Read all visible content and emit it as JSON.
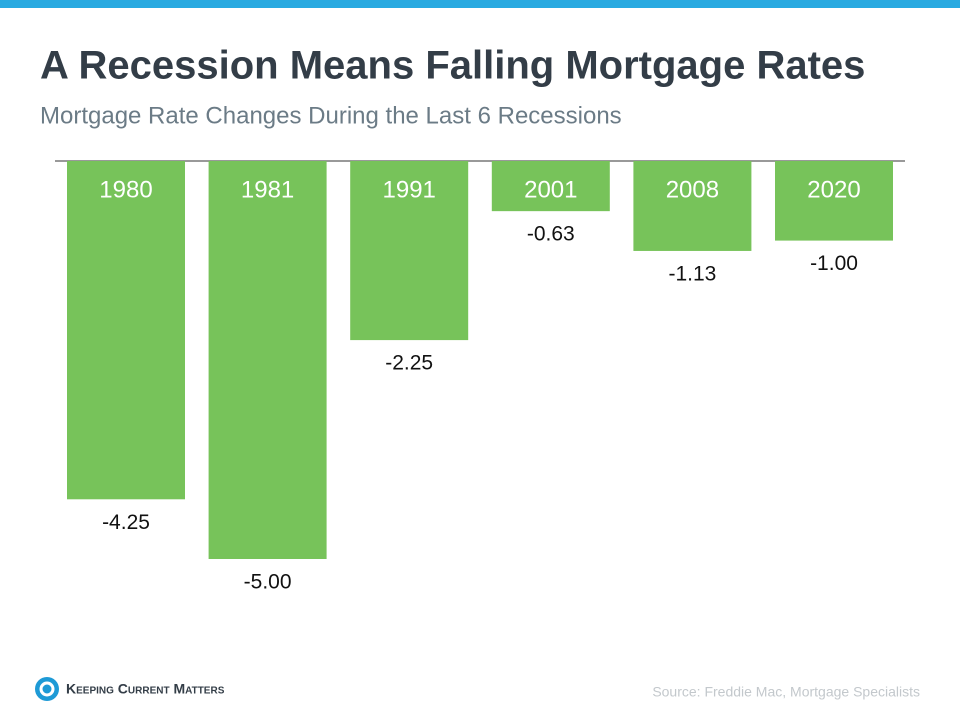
{
  "chart_data": {
    "type": "bar",
    "title": "A Recession Means Falling Mortgage Rates",
    "subtitle": "Mortgage Rate Changes During the Last 6 Recessions",
    "categories": [
      "1980",
      "1981",
      "1991",
      "2001",
      "2008",
      "2020"
    ],
    "values": [
      -4.25,
      -5.0,
      -2.25,
      -0.63,
      -1.13,
      -1.0
    ],
    "value_labels": [
      "-4.25",
      "-5.00",
      "-2.25",
      "-0.63",
      "-1.13",
      "-1.00"
    ],
    "color": "#77c35a",
    "source": "Source: Freddie Mac, Mortgage Specialists",
    "logo": "Keeping Current Matters"
  }
}
